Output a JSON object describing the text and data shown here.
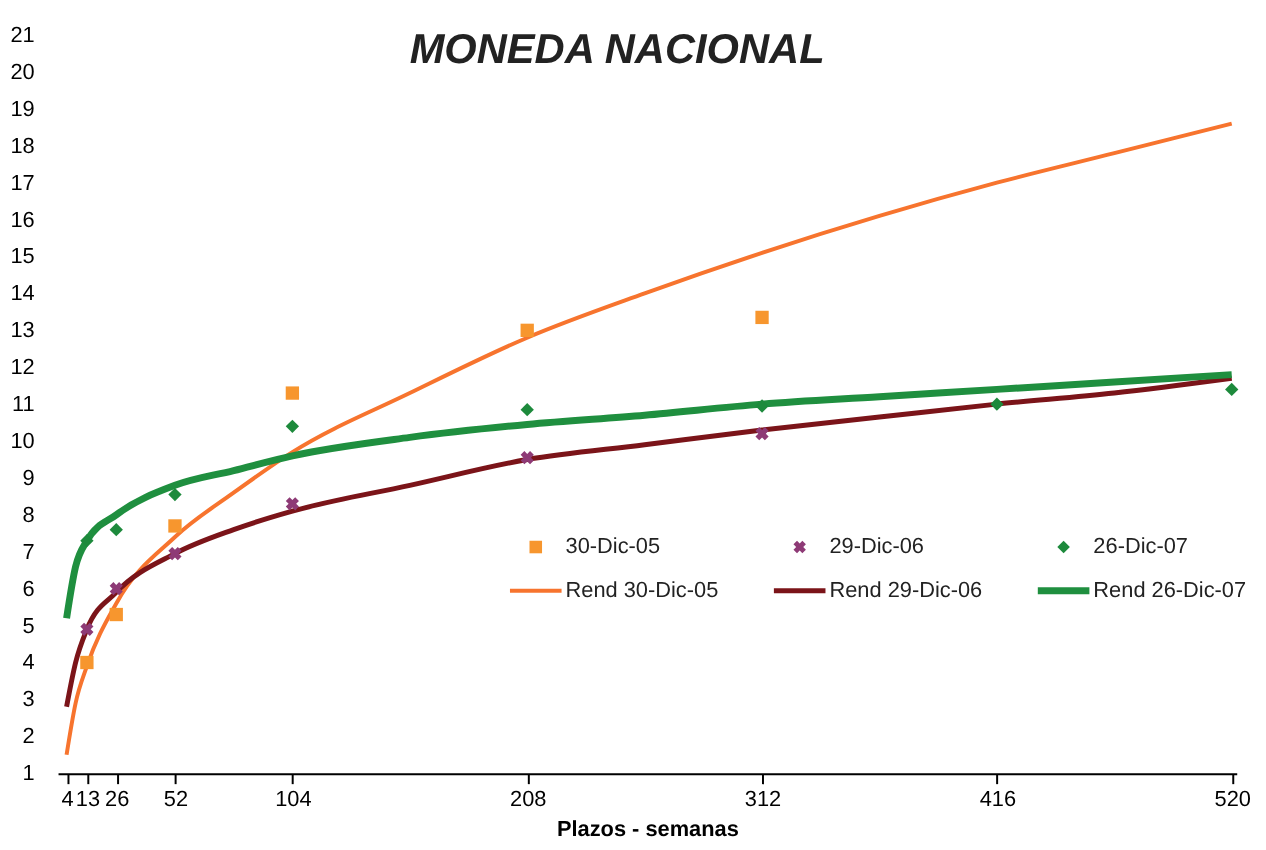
{
  "chart_data": {
    "type": "scatter",
    "title": "MONEDA NACIONAL",
    "xlabel": "Plazos - semanas",
    "x": [
      13,
      26,
      52,
      104,
      208,
      312,
      416,
      520
    ],
    "xlim": [
      0,
      522
    ],
    "xticks": [
      4,
      13,
      26,
      52,
      104,
      208,
      312,
      416,
      520
    ],
    "ylim": [
      1,
      21
    ],
    "yticks": [
      1,
      2,
      3,
      4,
      5,
      6,
      7,
      8,
      9,
      10,
      11,
      12,
      13,
      14,
      15,
      16,
      17,
      18,
      19,
      20,
      21
    ],
    "grid": false,
    "legend": "right",
    "series": [
      {
        "name": "30-Dic-05",
        "marker": "square",
        "color": "#f7962e",
        "values": [
          4.0,
          5.3,
          7.7,
          11.3,
          13.0,
          13.35,
          null,
          null
        ]
      },
      {
        "name": "29-Dic-06",
        "marker": "cross",
        "color": "#8e3a76",
        "values": [
          4.9,
          6.0,
          6.95,
          8.3,
          9.55,
          10.2,
          null,
          null
        ]
      },
      {
        "name": "26-Dic-07",
        "marker": "diamond",
        "color": "#1d8a3c",
        "values": [
          7.3,
          7.6,
          8.55,
          10.4,
          10.85,
          10.95,
          11.0,
          11.4
        ]
      },
      {
        "name": "Rend 30-Dic-05",
        "type": "line",
        "line_style": "solid",
        "color": "#f7742e",
        "x": [
          4,
          8,
          13,
          26,
          52,
          78,
          104,
          156,
          208,
          260,
          312,
          364,
          416,
          468,
          520
        ],
        "values": [
          1.5,
          2.9,
          3.9,
          5.6,
          7.4,
          8.6,
          9.7,
          11.3,
          12.8,
          14.0,
          15.1,
          16.1,
          17.0,
          17.8,
          18.6
        ]
      },
      {
        "name": "Rend 29-Dic-06",
        "type": "line",
        "line_style": "solid",
        "color": "#7b1419",
        "x": [
          4,
          8,
          13,
          26,
          52,
          78,
          104,
          156,
          208,
          260,
          312,
          364,
          416,
          468,
          520
        ],
        "values": [
          2.8,
          4.0,
          4.9,
          5.9,
          6.95,
          7.6,
          8.1,
          8.8,
          9.5,
          9.9,
          10.3,
          10.65,
          11.0,
          11.3,
          11.7
        ]
      },
      {
        "name": "Rend 26-Dic-07",
        "type": "line",
        "line_style": "solid",
        "color": "#1f8f3f",
        "x": [
          4,
          8,
          13,
          26,
          52,
          78,
          104,
          156,
          208,
          260,
          312,
          364,
          416,
          468,
          520
        ],
        "values": [
          5.2,
          6.6,
          7.3,
          8.0,
          8.8,
          9.2,
          9.6,
          10.1,
          10.45,
          10.7,
          11.0,
          11.2,
          11.4,
          11.6,
          11.8
        ]
      }
    ]
  }
}
